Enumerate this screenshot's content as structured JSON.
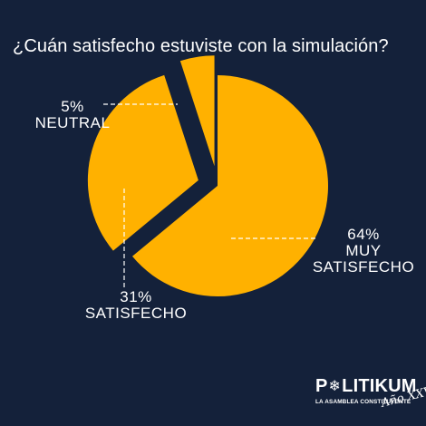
{
  "title": "¿Cuán satisfecho estuviste con la simulación?",
  "colors": {
    "background": "#14213a",
    "slice": "#ffb100",
    "text": "#ffffff",
    "leader": "#ffffff"
  },
  "chart_data": {
    "type": "pie",
    "title": "¿Cuán satisfecho estuviste con la simulación?",
    "exploded": true,
    "slices": [
      {
        "label": "MUY SATISFECHO",
        "value": 64,
        "value_label": "64%"
      },
      {
        "label": "SATISFECHO",
        "value": 31,
        "value_label": "31%"
      },
      {
        "label": "NEUTRAL",
        "value": 5,
        "value_label": "5%"
      }
    ]
  },
  "logo": {
    "name_part1": "P",
    "name_part2": "LITIKUM",
    "tagline": "LA ASAMBLEA CONSTITUYENTE",
    "signature": "Año XXV"
  }
}
